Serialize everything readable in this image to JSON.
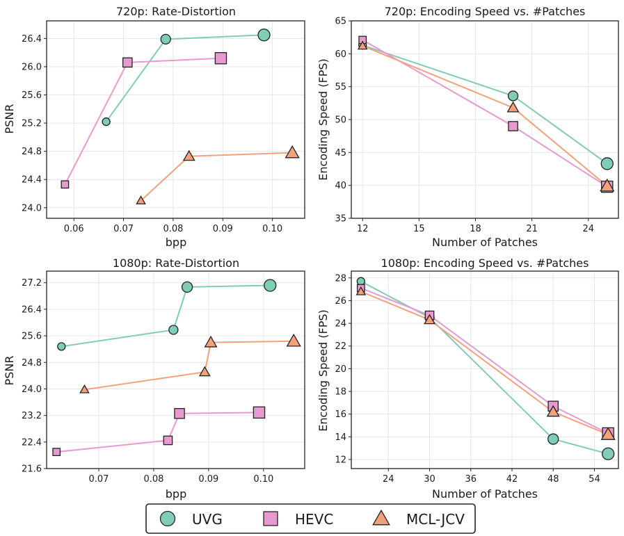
{
  "colors": {
    "UVG": "#7fcdb6",
    "HEVC": "#e899cf",
    "MCL-JCV": "#f4a07b"
  },
  "series_markers": {
    "UVG": "circle",
    "HEVC": "square",
    "MCL-JCV": "triangle"
  },
  "legend": {
    "entries": [
      "UVG",
      "HEVC",
      "MCL-JCV"
    ]
  },
  "chart_data": [
    {
      "id": "rd720",
      "type": "line",
      "title": "720p: Rate-Distortion",
      "xlabel": "bpp",
      "ylabel": "PSNR",
      "xlim": [
        0.0545,
        0.1065
      ],
      "ylim": [
        23.85,
        26.65
      ],
      "xticks": [
        0.06,
        0.07,
        0.08,
        0.09,
        0.1
      ],
      "xtick_labels": [
        "0.06",
        "0.07",
        "0.08",
        "0.09",
        "0.10"
      ],
      "yticks": [
        24.0,
        24.4,
        24.8,
        25.2,
        25.6,
        26.0,
        26.4
      ],
      "ytick_labels": [
        "24.0",
        "24.4",
        "24.8",
        "25.2",
        "25.6",
        "26.0",
        "26.4"
      ],
      "grid": true,
      "series": [
        {
          "name": "UVG",
          "x": [
            0.0665,
            0.0785,
            0.0983
          ],
          "y": [
            25.22,
            26.39,
            26.45
          ]
        },
        {
          "name": "HEVC",
          "x": [
            0.0582,
            0.0708,
            0.0896
          ],
          "y": [
            24.33,
            26.06,
            26.12
          ]
        },
        {
          "name": "MCL-JCV",
          "x": [
            0.0735,
            0.0832,
            0.104
          ],
          "y": [
            24.1,
            24.73,
            24.78
          ]
        }
      ]
    },
    {
      "id": "speed720",
      "type": "line",
      "title": "720p: Encoding Speed vs. #Patches",
      "xlabel": "Number of Patches",
      "ylabel": "Encoding Speed (FPS)",
      "xlim": [
        11.4,
        25.6
      ],
      "ylim": [
        35,
        65
      ],
      "xticks": [
        12,
        15,
        18,
        21,
        24
      ],
      "xtick_labels": [
        "12",
        "15",
        "18",
        "21",
        "24"
      ],
      "yticks": [
        35,
        40,
        45,
        50,
        55,
        60,
        65
      ],
      "ytick_labels": [
        "35",
        "40",
        "45",
        "50",
        "55",
        "60",
        "65"
      ],
      "grid": true,
      "series": [
        {
          "name": "UVG",
          "x": [
            12,
            20,
            25
          ],
          "y": [
            61.3,
            53.6,
            43.3
          ]
        },
        {
          "name": "HEVC",
          "x": [
            12,
            20,
            25
          ],
          "y": [
            62.1,
            49.0,
            39.8
          ]
        },
        {
          "name": "MCL-JCV",
          "x": [
            12,
            20,
            25
          ],
          "y": [
            61.2,
            51.8,
            39.9
          ]
        }
      ]
    },
    {
      "id": "rd1080",
      "type": "line",
      "title": "1080p: Rate-Distortion",
      "xlabel": "bpp",
      "ylabel": "PSNR",
      "xlim": [
        0.0605,
        0.1075
      ],
      "ylim": [
        21.6,
        27.55
      ],
      "xticks": [
        0.07,
        0.08,
        0.09,
        0.1
      ],
      "xtick_labels": [
        "0.07",
        "0.08",
        "0.09",
        "0.10"
      ],
      "yticks": [
        21.6,
        22.4,
        23.2,
        24.0,
        24.8,
        25.6,
        26.4,
        27.2
      ],
      "ytick_labels": [
        "21.6",
        "22.4",
        "23.2",
        "24.0",
        "24.8",
        "25.6",
        "26.4",
        "27.2"
      ],
      "grid": true,
      "series": [
        {
          "name": "UVG",
          "x": [
            0.0632,
            0.0836,
            0.0861,
            0.1012
          ],
          "y": [
            25.28,
            25.78,
            27.07,
            27.12
          ]
        },
        {
          "name": "HEVC",
          "x": [
            0.0623,
            0.0826,
            0.0847,
            0.0992
          ],
          "y": [
            22.1,
            22.45,
            23.26,
            23.29
          ]
        },
        {
          "name": "MCL-JCV",
          "x": [
            0.0674,
            0.0893,
            0.0904,
            0.1055
          ],
          "y": [
            23.98,
            24.51,
            25.4,
            25.44
          ]
        }
      ]
    },
    {
      "id": "speed1080",
      "type": "line",
      "title": "1080p: Encoding Speed vs. #Patches",
      "xlabel": "Number of Patches",
      "ylabel": "Encoding Speed (FPS)",
      "xlim": [
        18.6,
        57.5
      ],
      "ylim": [
        11.2,
        28.6
      ],
      "xticks": [
        24,
        30,
        36,
        42,
        48,
        54
      ],
      "xtick_labels": [
        "24",
        "30",
        "36",
        "42",
        "48",
        "54"
      ],
      "yticks": [
        12,
        14,
        16,
        18,
        20,
        22,
        24,
        26,
        28
      ],
      "ytick_labels": [
        "12",
        "14",
        "16",
        "18",
        "20",
        "22",
        "24",
        "26",
        "28"
      ],
      "grid": true,
      "series": [
        {
          "name": "UVG",
          "x": [
            20,
            30,
            48,
            56
          ],
          "y": [
            27.7,
            24.5,
            13.8,
            12.5
          ]
        },
        {
          "name": "HEVC",
          "x": [
            20,
            30,
            48,
            56
          ],
          "y": [
            27.1,
            24.7,
            16.7,
            14.3
          ]
        },
        {
          "name": "MCL-JCV",
          "x": [
            20,
            30,
            48,
            56
          ],
          "y": [
            26.8,
            24.3,
            16.2,
            14.2
          ]
        }
      ]
    }
  ]
}
